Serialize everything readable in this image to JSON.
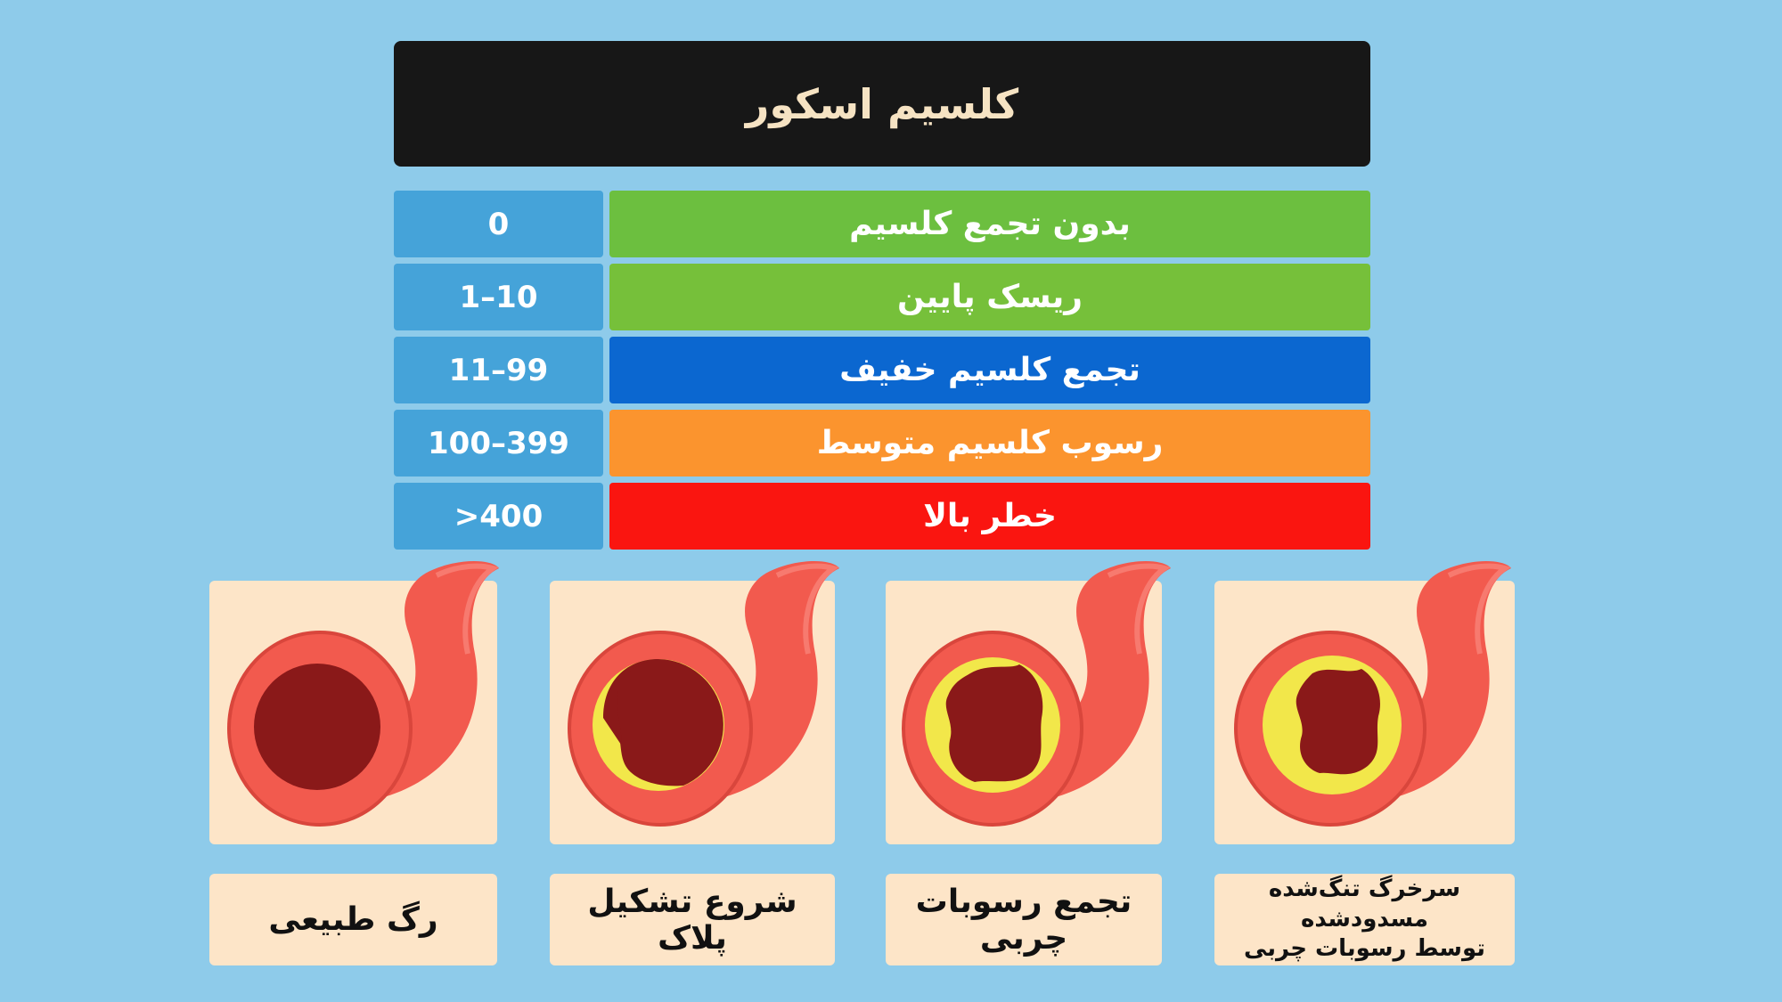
{
  "title": "کلسیم اسکور",
  "colors": {
    "background": "#8ecbea",
    "title_bg": "#171717",
    "title_text": "#f6e3c3",
    "value_cell": "#45a3d9",
    "card": "#fde5c8",
    "artery": "#f25a4e",
    "lumen": "#8a1919",
    "plaque": "#f2e74a"
  },
  "score_rows": [
    {
      "value": "0",
      "label": "بدون تجمع کلسیم",
      "color": "#6cbf3f"
    },
    {
      "value": "1–10",
      "label": "ریسک پایین",
      "color": "#76c03a"
    },
    {
      "value": "11–99",
      "label": "تجمع کلسیم خفیف",
      "color": "#0b67d0"
    },
    {
      "value": "100–399",
      "label": "رسوب کلسیم متوسط",
      "color": "#fb942e"
    },
    {
      "value": ">400",
      "label": "خطر بالا",
      "color": "#fa1510"
    }
  ],
  "stages": [
    {
      "icon": "normal-artery-icon",
      "caption": "رگ طبیعی"
    },
    {
      "icon": "early-plaque-artery-icon",
      "caption": "شروع تشکیل پلاک"
    },
    {
      "icon": "fatty-deposit-artery-icon",
      "caption": "تجمع رسوبات چربی"
    },
    {
      "icon": "blocked-artery-icon",
      "caption_line1": "سرخرگ تنگ‌شده مسدودشده",
      "caption_line2": "توسط رسوبات چربی"
    }
  ]
}
